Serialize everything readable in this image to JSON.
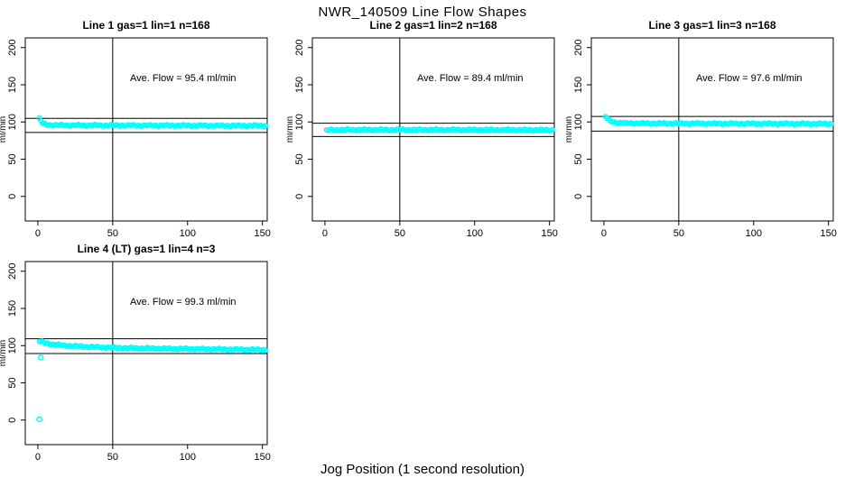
{
  "page": {
    "title": "NWR_140509  Line Flow Shapes",
    "xlabel": "Jog Position (1 second resolution)",
    "background": "#ffffff"
  },
  "chart_data": {
    "type": "scatter",
    "title": "NWR_140509  Line Flow Shapes",
    "xlabel": "Jog Position (1 second resolution)",
    "ylabel": "ml/min",
    "layout": "2x3 grid, plots in cells 1,2,3 and 4; cells 5,6 empty",
    "axes": {
      "x_ticks": [
        0,
        50,
        100,
        150
      ],
      "y_ticks": [
        0,
        50,
        100,
        150,
        200
      ],
      "xlim": [
        -8.4,
        153.2
      ],
      "ylim": [
        -33,
        213
      ],
      "grid": false,
      "y_tick_label_rotation": 90
    },
    "marker": {
      "shape": "open-circle",
      "color": "#00FFFF",
      "first_point_color": "#FF9999",
      "x_step": 1,
      "x_start": 1,
      "x_end": 152
    },
    "plots": [
      {
        "title": "Line 1 gas=1 lin=1 n=168",
        "annotation": "Ave. Flow =  95.4  ml/min",
        "ave_flow_ml_min": 95.4,
        "n": 168,
        "ref_lines": [
          104.9,
          85.9
        ],
        "vline_x": 50,
        "first_point_pink": false,
        "series_keypoints": [
          [
            1,
            104.5
          ],
          [
            2,
            101.5
          ],
          [
            3,
            98.5
          ],
          [
            5,
            96.8
          ],
          [
            8,
            95.9
          ],
          [
            15,
            95.6
          ],
          [
            30,
            95.4
          ],
          [
            60,
            95.3
          ],
          [
            100,
            95.1
          ],
          [
            152,
            94.9
          ]
        ],
        "outliers": []
      },
      {
        "title": "Line 2 gas=1 lin=2 n=168",
        "annotation": "Ave. Flow =  89.4  ml/min",
        "ave_flow_ml_min": 89.4,
        "n": 168,
        "ref_lines": [
          98.3,
          80.5
        ],
        "vline_x": 50,
        "first_point_pink": true,
        "series_keypoints": [
          [
            1,
            88.6
          ],
          [
            3,
            89.2
          ],
          [
            10,
            89.5
          ],
          [
            50,
            89.5
          ],
          [
            100,
            89.4
          ],
          [
            152,
            89.2
          ]
        ],
        "outliers": []
      },
      {
        "title": "Line 3 gas=1 lin=3 n=168",
        "annotation": "Ave. Flow =  97.6  ml/min",
        "ave_flow_ml_min": 97.6,
        "n": 168,
        "ref_lines": [
          107.4,
          87.8
        ],
        "vline_x": 50,
        "first_point_pink": false,
        "series_keypoints": [
          [
            1,
            107.5
          ],
          [
            2,
            105.5
          ],
          [
            3,
            103
          ],
          [
            5,
            100.5
          ],
          [
            8,
            99.2
          ],
          [
            15,
            98.4
          ],
          [
            30,
            98.1
          ],
          [
            60,
            97.9
          ],
          [
            100,
            97.7
          ],
          [
            152,
            97.5
          ]
        ],
        "outliers": []
      },
      {
        "title": "Line 4 (LT) gas=1 lin=4 n=3",
        "annotation": "Ave. Flow =  99.3  ml/min",
        "ave_flow_ml_min": 99.3,
        "n": 3,
        "ref_lines": [
          109.2,
          89.4
        ],
        "vline_x": 50,
        "first_point_pink": false,
        "series_keypoints": [
          [
            1,
            106
          ],
          [
            3,
            104.8
          ],
          [
            6,
            103.2
          ],
          [
            10,
            101.8
          ],
          [
            20,
            99.8
          ],
          [
            35,
            98.2
          ],
          [
            55,
            96.9
          ],
          [
            80,
            96.1
          ],
          [
            110,
            95.3
          ],
          [
            152,
            94.4
          ]
        ],
        "outliers": [
          [
            2,
            84
          ],
          [
            1,
            1
          ]
        ]
      }
    ]
  }
}
